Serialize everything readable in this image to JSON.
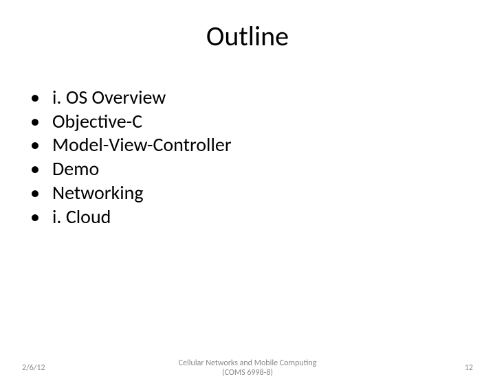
{
  "slide": {
    "title": "Outline",
    "bullets": [
      "i. OS Overview",
      "Objective-C",
      "Model-View-Controller",
      "Demo",
      "Networking",
      "i. Cloud"
    ],
    "footer": {
      "date": "2/6/12",
      "center_line1": "Cellular Networks and Mobile Computing",
      "center_line2": "(COMS 6998-8)",
      "page_number": "12"
    },
    "colors": {
      "background": "#ffffff",
      "text": "#000000",
      "footer_text": "#898989"
    },
    "typography": {
      "title_fontsize": 40,
      "bullet_fontsize": 28,
      "footer_fontsize": 12,
      "font_family": "Calibri"
    }
  }
}
